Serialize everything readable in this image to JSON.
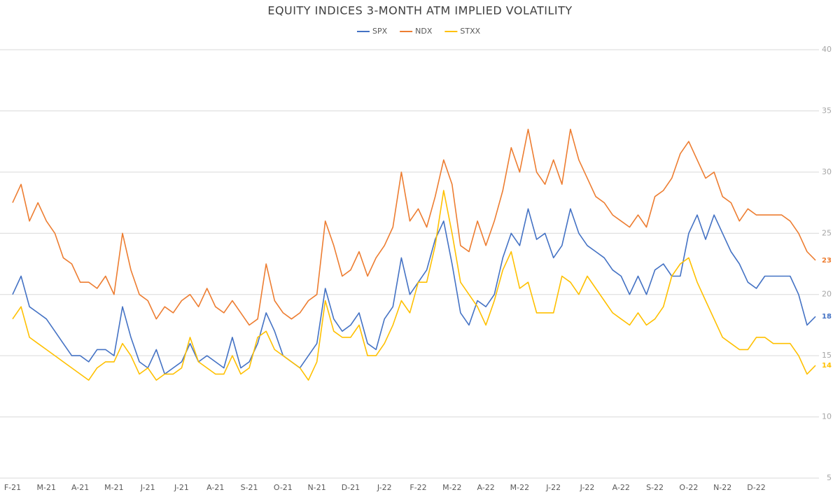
{
  "chart_data": {
    "type": "line",
    "title": "EQUITY INDICES 3-MONTH ATM IMPLIED VOLATILITY",
    "categories": [
      "F-21",
      null,
      null,
      null,
      "M-21",
      null,
      null,
      null,
      "A-21",
      null,
      null,
      null,
      "M-21",
      null,
      null,
      null,
      "J-21",
      null,
      null,
      null,
      "J-21",
      null,
      null,
      null,
      "A-21",
      null,
      null,
      null,
      "S-21",
      null,
      null,
      null,
      "O-21",
      null,
      null,
      null,
      "N-21",
      null,
      null,
      null,
      "D-21",
      null,
      null,
      null,
      "J-22",
      null,
      null,
      null,
      "F-22",
      null,
      null,
      null,
      "M-22",
      null,
      null,
      null,
      "A-22",
      null,
      null,
      null,
      "M-22",
      null,
      null,
      null,
      "J-22",
      null,
      null,
      null,
      "J-22",
      null,
      null,
      null,
      "A-22",
      null,
      null,
      null,
      "S-22",
      null,
      null,
      null,
      "O-22",
      null,
      null,
      null,
      "N-22",
      null,
      null,
      null,
      "D-22",
      null,
      null,
      null,
      null,
      null,
      null,
      null
    ],
    "series": [
      {
        "name": "SPX",
        "color": "#4472c4",
        "values": [
          20,
          21.5,
          19,
          18.5,
          18,
          17,
          16,
          15,
          15,
          14.5,
          15.5,
          15.5,
          15,
          19,
          16.5,
          14.5,
          14,
          15.5,
          13.5,
          14,
          14.5,
          16,
          14.5,
          15,
          14.5,
          14,
          16.5,
          14,
          14.5,
          16,
          18.5,
          17,
          15,
          14.5,
          14,
          15,
          16,
          20.5,
          18,
          17,
          17.5,
          18.5,
          16,
          15.5,
          18,
          19,
          23,
          20,
          21,
          22,
          24.5,
          26,
          22.5,
          18.5,
          17.5,
          19.5,
          19,
          20,
          23,
          25,
          24,
          27,
          24.5,
          25,
          23,
          24,
          27,
          25,
          24,
          23.5,
          23,
          22,
          21.5,
          20,
          21.5,
          20,
          22,
          22.5,
          21.5,
          21.5,
          25,
          26.5,
          24.5,
          26.5,
          25,
          23.5,
          22.5,
          21,
          20.5,
          21.5,
          21.5,
          21.5,
          21.5,
          20,
          17.5,
          18.2
        ],
        "value_labels": [
          null,
          null,
          null,
          null,
          null,
          null,
          null,
          null,
          null,
          null,
          null,
          null,
          null,
          null,
          null,
          null,
          null,
          null,
          null,
          null,
          null,
          null,
          null,
          null,
          null,
          null,
          null,
          null,
          null,
          null,
          null,
          null,
          null,
          null,
          null,
          null,
          null,
          null,
          null,
          null,
          null,
          null,
          null,
          null,
          null,
          null,
          null,
          null,
          null,
          null,
          null,
          null,
          null,
          null,
          null,
          null,
          null,
          null,
          null,
          null,
          null,
          null,
          null,
          null,
          null,
          null,
          null,
          null,
          null,
          null,
          null,
          null,
          null,
          null,
          null,
          null,
          null,
          null,
          null,
          null,
          null,
          null,
          null,
          null,
          null,
          null,
          null,
          null,
          null,
          null,
          null,
          null,
          null,
          null,
          null,
          "18"
        ]
      },
      {
        "name": "NDX",
        "color": "#ed7d31",
        "values": [
          27.5,
          29,
          26,
          27.5,
          26,
          25,
          23,
          22.5,
          21,
          21,
          20.5,
          21.5,
          20,
          25,
          22,
          20,
          19.5,
          18,
          19,
          18.5,
          19.5,
          20,
          19,
          20.5,
          19,
          18.5,
          19.5,
          18.5,
          17.5,
          18,
          22.5,
          19.5,
          18.5,
          18,
          18.5,
          19.5,
          20,
          26,
          24,
          21.5,
          22,
          23.5,
          21.5,
          23,
          24,
          25.5,
          30,
          26,
          27,
          25.5,
          28,
          31,
          29,
          24,
          23.5,
          26,
          24,
          26,
          28.5,
          32,
          30,
          33.5,
          30,
          29,
          31,
          29,
          33.5,
          31,
          29.5,
          28,
          27.5,
          26.5,
          26,
          25.5,
          26.5,
          25.5,
          28,
          28.5,
          29.5,
          31.5,
          32.5,
          31,
          29.5,
          30,
          28,
          27.5,
          26,
          27,
          26.5,
          26.5,
          26.5,
          26.5,
          26,
          25,
          23.5,
          22.8
        ],
        "value_labels": [
          null,
          null,
          null,
          null,
          null,
          null,
          null,
          null,
          null,
          null,
          null,
          null,
          null,
          null,
          null,
          null,
          null,
          null,
          null,
          null,
          null,
          null,
          null,
          null,
          null,
          null,
          null,
          null,
          null,
          null,
          null,
          null,
          null,
          null,
          null,
          null,
          null,
          null,
          null,
          null,
          null,
          null,
          null,
          null,
          null,
          null,
          null,
          null,
          null,
          null,
          null,
          null,
          null,
          null,
          null,
          null,
          null,
          null,
          null,
          null,
          null,
          null,
          null,
          null,
          null,
          null,
          null,
          null,
          null,
          null,
          null,
          null,
          null,
          null,
          null,
          null,
          null,
          null,
          null,
          null,
          null,
          null,
          null,
          null,
          null,
          null,
          null,
          null,
          null,
          null,
          null,
          null,
          null,
          null,
          null,
          "23"
        ]
      },
      {
        "name": "STXX",
        "color": "#ffc000",
        "values": [
          18,
          19,
          16.5,
          16,
          15.5,
          15,
          14.5,
          14,
          13.5,
          13,
          14,
          14.5,
          14.5,
          16,
          15,
          13.5,
          14,
          13,
          13.5,
          13.5,
          14,
          16.5,
          14.5,
          14,
          13.5,
          13.5,
          15,
          13.5,
          14,
          16.5,
          17,
          15.5,
          15,
          14.5,
          14,
          13,
          14.5,
          19.5,
          17,
          16.5,
          16.5,
          17.5,
          15,
          15,
          16,
          17.5,
          19.5,
          18.5,
          21,
          21,
          24,
          28.5,
          25,
          21,
          20,
          19,
          17.5,
          19.5,
          22,
          23.5,
          20.5,
          21,
          18.5,
          18.5,
          18.5,
          21.5,
          21,
          20,
          21.5,
          20.5,
          19.5,
          18.5,
          18,
          17.5,
          18.5,
          17.5,
          18,
          19,
          21.5,
          22.5,
          23,
          21,
          19.5,
          18,
          16.5,
          16,
          15.5,
          15.5,
          16.5,
          16.5,
          16,
          16,
          16,
          15,
          13.5,
          14.2
        ],
        "value_labels": [
          null,
          null,
          null,
          null,
          null,
          null,
          null,
          null,
          null,
          null,
          null,
          null,
          null,
          null,
          null,
          null,
          null,
          null,
          null,
          null,
          null,
          null,
          null,
          null,
          null,
          null,
          null,
          null,
          null,
          null,
          null,
          null,
          null,
          null,
          null,
          null,
          null,
          null,
          null,
          null,
          null,
          null,
          null,
          null,
          null,
          null,
          null,
          null,
          null,
          null,
          null,
          null,
          null,
          null,
          null,
          null,
          null,
          null,
          null,
          null,
          null,
          null,
          null,
          null,
          null,
          null,
          null,
          null,
          null,
          null,
          null,
          null,
          null,
          null,
          null,
          null,
          null,
          null,
          null,
          null,
          null,
          null,
          null,
          null,
          null,
          null,
          null,
          null,
          null,
          null,
          null,
          null,
          null,
          null,
          null,
          "14"
        ]
      }
    ],
    "ylim": [
      5,
      40
    ],
    "yticks": [
      5,
      10,
      15,
      20,
      25,
      30,
      35,
      40
    ],
    "grid": true,
    "legend": "top"
  }
}
